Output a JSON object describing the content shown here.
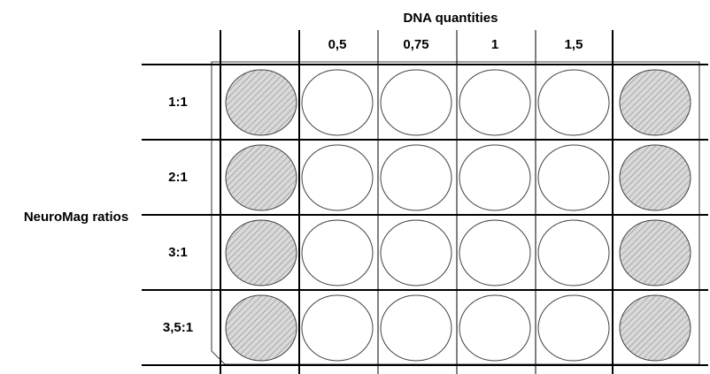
{
  "column_axis_title": "DNA quantities",
  "row_axis_title": "NeuroMag ratios",
  "column_labels": [
    "0,5",
    "0,75",
    "1",
    "1,5"
  ],
  "row_labels": [
    "1:1",
    "2:1",
    "3:1",
    "3,5:1"
  ],
  "colors": {
    "grid_line": "#000000",
    "well_border": "#444444",
    "hatched_well_fill": "#d9d9d9",
    "hatch_line": "#8c8c8c",
    "empty_well_fill": "#ffffff"
  },
  "wells": {
    "edge_columns": "hatched",
    "data_columns": "empty"
  }
}
